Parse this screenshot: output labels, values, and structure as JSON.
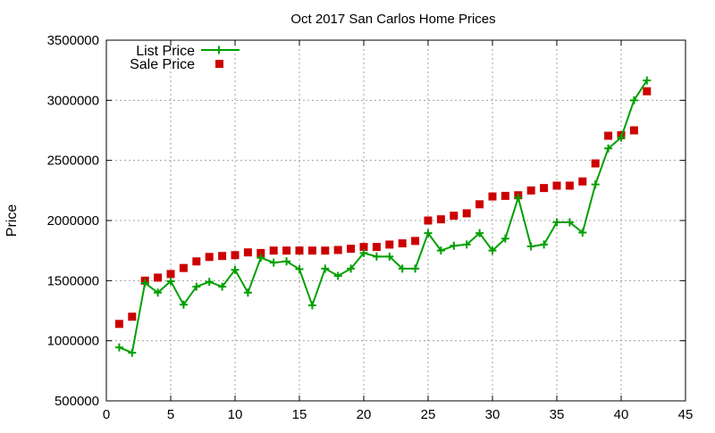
{
  "chart_data": {
    "type": "line",
    "title": "Oct 2017 San Carlos Home Prices",
    "xlabel": "",
    "ylabel": "Price",
    "xlim": [
      0,
      45
    ],
    "ylim": [
      500000,
      3500000
    ],
    "xticks": [
      0,
      5,
      10,
      15,
      20,
      25,
      30,
      35,
      40,
      45
    ],
    "yticks": [
      500000,
      1000000,
      1500000,
      2000000,
      2500000,
      3000000,
      3500000
    ],
    "grid": true,
    "legend_position": "top-left",
    "x": [
      1,
      2,
      3,
      4,
      5,
      6,
      7,
      8,
      9,
      10,
      11,
      12,
      13,
      14,
      15,
      16,
      17,
      18,
      19,
      20,
      21,
      22,
      23,
      24,
      25,
      26,
      27,
      28,
      29,
      30,
      31,
      32,
      33,
      34,
      35,
      36,
      37,
      38,
      39,
      40,
      41,
      42
    ],
    "series": [
      {
        "name": "List Price",
        "style": "linespoints",
        "color": "#00a000",
        "values": [
          945000,
          900000,
          1480000,
          1400000,
          1495000,
          1300000,
          1450000,
          1490000,
          1450000,
          1590000,
          1400000,
          1690000,
          1650000,
          1660000,
          1595000,
          1295000,
          1600000,
          1540000,
          1600000,
          1730000,
          1700000,
          1700000,
          1600000,
          1600000,
          1895000,
          1750000,
          1790000,
          1800000,
          1895000,
          1750000,
          1850000,
          2190000,
          1785000,
          1800000,
          1985000,
          1985000,
          1900000,
          2300000,
          2600000,
          2690000,
          3000000,
          3165000
        ]
      },
      {
        "name": "Sale Price",
        "style": "points",
        "color": "#cc0000",
        "values": [
          1140000,
          1200000,
          1500000,
          1525000,
          1555000,
          1605000,
          1660000,
          1697000,
          1705000,
          1712000,
          1735000,
          1730000,
          1750000,
          1750000,
          1750000,
          1750000,
          1750000,
          1755000,
          1765000,
          1780000,
          1780000,
          1800000,
          1810000,
          1830000,
          2000000,
          2010000,
          2040000,
          2060000,
          2135000,
          2200000,
          2205000,
          2210000,
          2250000,
          2270000,
          2290000,
          2290000,
          2325000,
          2475000,
          2705000,
          2710000,
          2750000,
          3075000
        ]
      }
    ]
  }
}
